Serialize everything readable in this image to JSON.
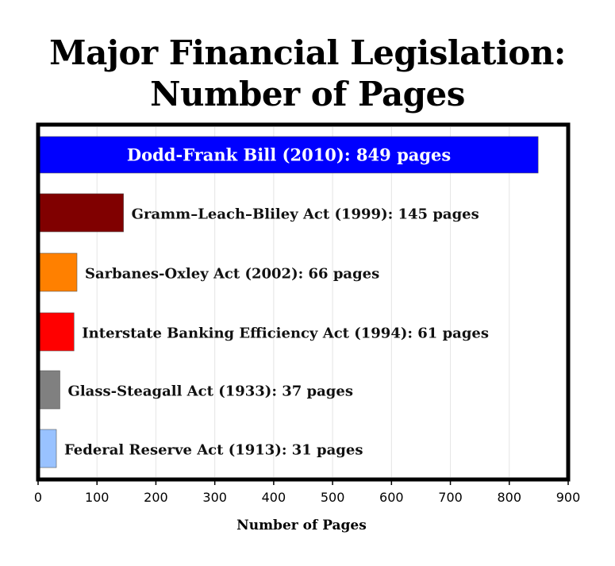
{
  "chart_data": {
    "type": "bar",
    "orientation": "horizontal",
    "title_line1": "Major Financial Legislation:",
    "title_line2": "Number of Pages",
    "xlabel": "Number of Pages",
    "ylabel": "",
    "xlim": [
      0,
      900
    ],
    "xticks": [
      0,
      100,
      200,
      300,
      400,
      500,
      600,
      700,
      800,
      900
    ],
    "grid": "vertical",
    "bars": [
      {
        "label": "Dodd-Frank Bill (2010): 849 pages",
        "value": 849,
        "color": "#0000ff",
        "label_inside": true
      },
      {
        "label": "Gramm–Leach–Bliley Act (1999): 145 pages",
        "value": 145,
        "color": "#800000",
        "label_inside": false
      },
      {
        "label": "Sarbanes-Oxley Act (2002): 66 pages",
        "value": 66,
        "color": "#ff8000",
        "label_inside": false
      },
      {
        "label": "Interstate Banking Efficiency Act (1994): 61 pages",
        "value": 61,
        "color": "#ff0000",
        "label_inside": false
      },
      {
        "label": "Glass-Steagall Act (1933): 37 pages",
        "value": 37,
        "color": "#808080",
        "label_inside": false
      },
      {
        "label": "Federal Reserve Act (1913): 31 pages",
        "value": 31,
        "color": "#99c2ff",
        "label_inside": false
      }
    ]
  }
}
